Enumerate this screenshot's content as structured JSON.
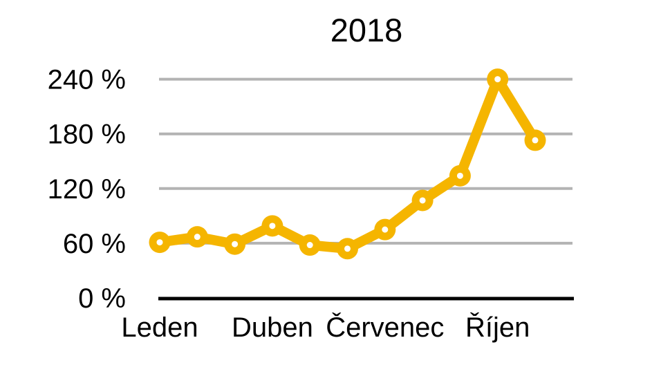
{
  "chart_data": {
    "type": "line",
    "title": "2018",
    "series": [
      {
        "name": "2018",
        "values": [
          61,
          67,
          59,
          79,
          58,
          54,
          75,
          107,
          134,
          240,
          173
        ]
      }
    ],
    "x_slot_count": 12,
    "x_ticks": [
      {
        "slot": 0,
        "label": "Leden"
      },
      {
        "slot": 3,
        "label": "Duben"
      },
      {
        "slot": 6,
        "label": "Červenec"
      },
      {
        "slot": 9,
        "label": "Říjen"
      }
    ],
    "y_ticks": [
      {
        "value": 0,
        "label": "0 %"
      },
      {
        "value": 60,
        "label": "60 %"
      },
      {
        "value": 120,
        "label": "120 %"
      },
      {
        "value": 180,
        "label": "180 %"
      },
      {
        "value": 240,
        "label": "240 %"
      }
    ],
    "ylim": [
      0,
      255
    ],
    "grid": true,
    "legend_position": "none",
    "colors": {
      "line": "#F5B500",
      "marker_fill": "#F5B500",
      "marker_hole": "#FFFFFF",
      "grid": "#B3B3B3",
      "axis": "#000000",
      "text": "#000000",
      "background": "#FFFFFF"
    }
  }
}
